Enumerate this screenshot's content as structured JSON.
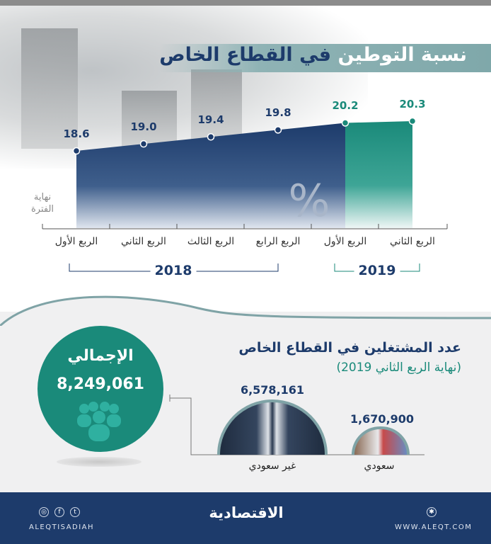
{
  "title": {
    "part_white": "نسبة التوطين",
    "part_dark": "في القطاع الخاص"
  },
  "chart_data": {
    "type": "area",
    "title": "نسبة التوطين في القطاع الخاص",
    "unit": "%",
    "categories": [
      "الربع الأول",
      "الربع الثاني",
      "الربع الثالث",
      "الربع الرابع",
      "الربع الأول",
      "الربع الثاني"
    ],
    "years": [
      {
        "label": "2018",
        "quarters": 4
      },
      {
        "label": "2019",
        "quarters": 2
      }
    ],
    "values": [
      18.6,
      19.0,
      19.4,
      19.8,
      20.2,
      20.3
    ],
    "value_labels": [
      "18.6",
      "19.0",
      "19.4",
      "19.8",
      "20.2",
      "20.3"
    ],
    "ylabel": "نهاية الفترة",
    "colors": {
      "2018": "#1d3b6b",
      "2019": "#1a8a7a"
    }
  },
  "employment": {
    "title": "عدد المشتغلين في القطاع الخاص",
    "subtitle": "(نهاية الربع الثاني 2019)",
    "total_label": "الإجمالي",
    "total_value": "8,249,061",
    "groups": [
      {
        "label": "غير سعودي",
        "value": "6,578,161"
      },
      {
        "label": "سعودي",
        "value": "1,670,900"
      }
    ]
  },
  "footer": {
    "logo": "الاقتصادية",
    "social_handle": "ALEQTISADIAH",
    "website": "WWW.ALEQT.COM",
    "icons": [
      "instagram-icon",
      "facebook-icon",
      "twitter-icon",
      "globe-icon"
    ]
  }
}
